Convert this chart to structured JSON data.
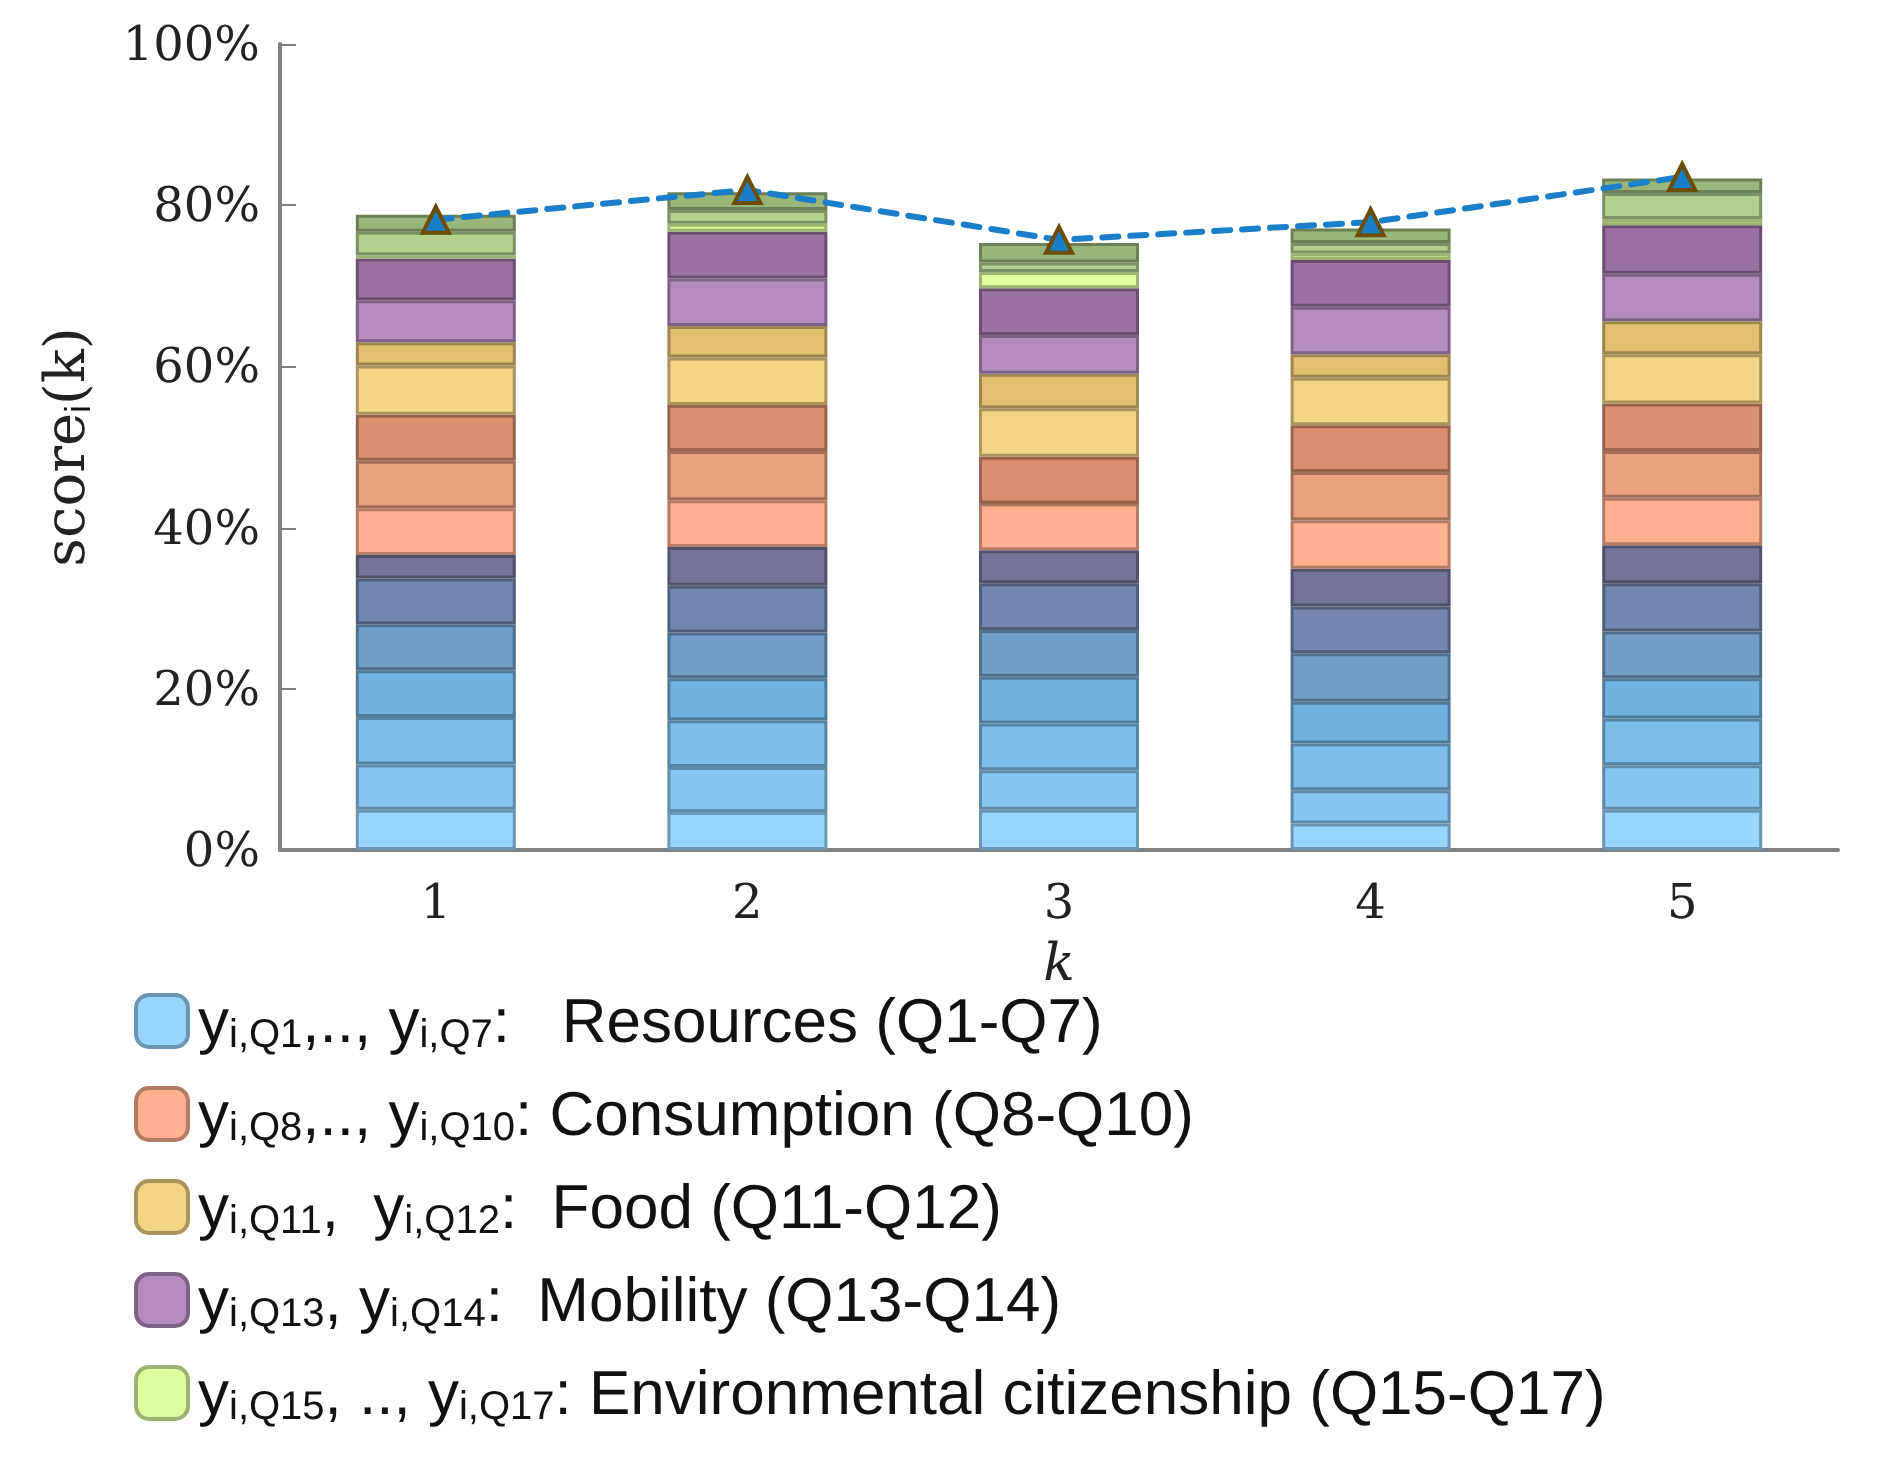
{
  "chart_data": {
    "type": "bar",
    "stacked": true,
    "xlabel": "k",
    "ylabel": "score$_{i}$(k)",
    "categories": [
      "1",
      "2",
      "3",
      "4",
      "5"
    ],
    "ylim": [
      0,
      100
    ],
    "yticks": [
      {
        "value": 0,
        "label": "0%"
      },
      {
        "value": 20,
        "label": "20%"
      },
      {
        "value": 40,
        "label": "40%"
      },
      {
        "value": 60,
        "label": "60%"
      },
      {
        "value": 80,
        "label": "80%"
      },
      {
        "value": 100,
        "label": "100%"
      }
    ],
    "grid": false,
    "legend": "bottom",
    "series": [
      {
        "name": "y$_{i,Q1}$,.., y$_{i,Q7}$:   Resources (Q1-Q7)",
        "color": "#99d5ff",
        "values": [
          5.0,
          4.7,
          5.0,
          3.3,
          5.0
        ]
      },
      {
        "color": "#88c6f0",
        "values": [
          5.6,
          5.6,
          4.9,
          4.1,
          5.5
        ]
      },
      {
        "color": "#7ebde8",
        "values": [
          5.9,
          5.8,
          5.8,
          5.8,
          5.8
        ]
      },
      {
        "color": "#72b1dc",
        "values": [
          5.8,
          5.2,
          5.8,
          5.2,
          5.0
        ]
      },
      {
        "color": "#729ec8",
        "values": [
          5.7,
          5.7,
          5.8,
          6.0,
          5.8
        ]
      },
      {
        "color": "#7386b0",
        "values": [
          5.7,
          5.8,
          5.8,
          5.8,
          6.0
        ]
      },
      {
        "color": "#737399",
        "values": [
          2.9,
          4.8,
          4.1,
          4.7,
          4.7
        ]
      },
      {
        "name": "y$_{i,Q8}$,.., y$_{i,Q10}$: Consumption (Q8-Q10)",
        "color": "#ffb090",
        "values": [
          5.8,
          5.8,
          5.8,
          6.0,
          5.9
        ]
      },
      {
        "color": "#e8a07e",
        "values": [
          5.9,
          6.1,
          0,
          6.0,
          5.8
        ]
      },
      {
        "color": "#da8f70",
        "values": [
          5.7,
          5.7,
          5.8,
          5.8,
          5.9
        ]
      },
      {
        "name": "y$_{i,Q11}$,  y$_{i,Q12}$:  Food (Q11-Q12)",
        "color": "#f3d384",
        "values": [
          6.1,
          5.9,
          6.0,
          5.9,
          6.1
        ]
      },
      {
        "color": "#e3c070",
        "values": [
          2.9,
          3.9,
          4.3,
          2.9,
          4.1
        ]
      },
      {
        "name": "y$_{i,Q13}$, y$_{i,Q14}$:  Mobility (Q13-Q14)",
        "color": "#b58bc2",
        "values": [
          5.2,
          5.9,
          4.8,
          5.9,
          5.9
        ]
      },
      {
        "color": "#9b70a3",
        "values": [
          5.2,
          5.8,
          5.8,
          5.8,
          6.0
        ]
      },
      {
        "name": "y$_{i,Q15}$, .., y$_{i,Q17}$: Environmental citizenship (Q15-Q17)",
        "color": "#deffa0",
        "values": [
          0.4,
          1.0,
          2.0,
          0.8,
          0.8
        ]
      },
      {
        "color": "#b3d08f",
        "values": [
          2.9,
          1.7,
          1.2,
          1.3,
          3.2
        ]
      },
      {
        "color": "#9ab57a",
        "values": [
          2.1,
          2.2,
          2.4,
          1.8,
          1.8
        ]
      },
      {
        "type": "line",
        "color": "#1a7ec8",
        "marker": "triangle",
        "line_style": "dashed",
        "values": [
          78.2,
          81.9,
          75.7,
          77.9,
          83.5
        ]
      }
    ]
  }
}
